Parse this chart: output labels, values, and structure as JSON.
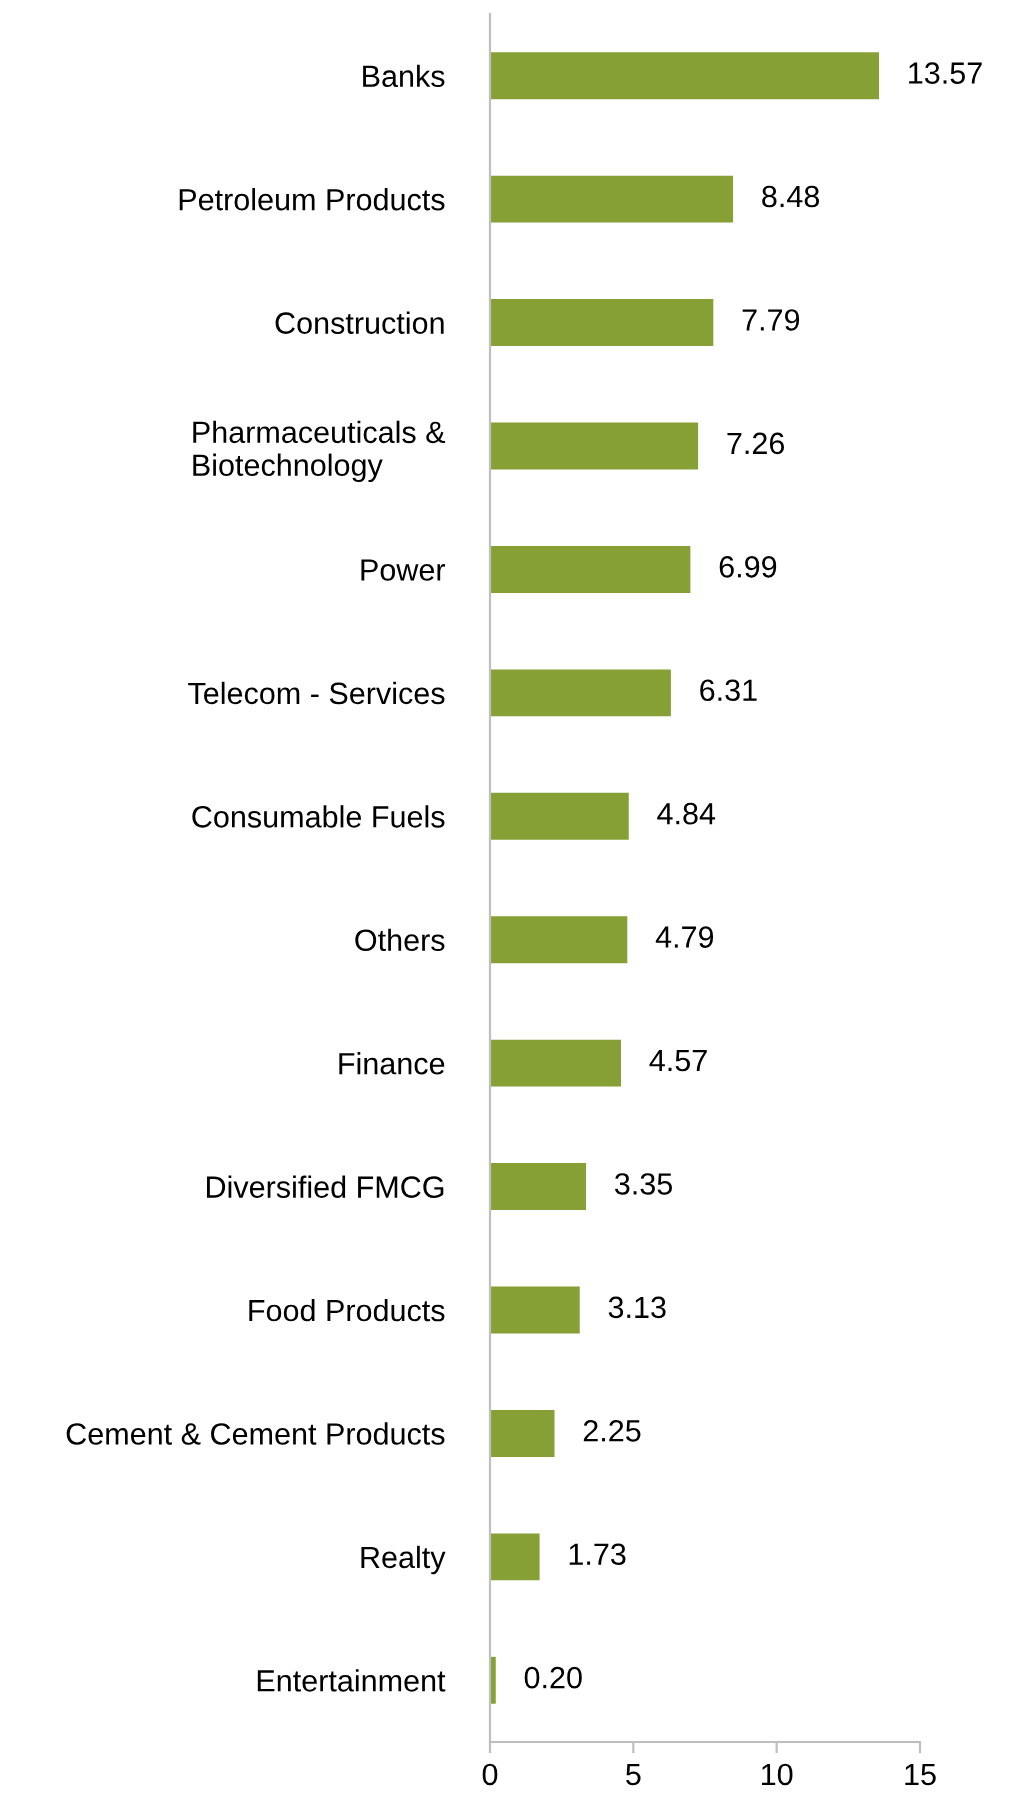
{
  "chart_data": {
    "type": "bar",
    "orientation": "horizontal",
    "categories": [
      "Banks",
      "Petroleum Products",
      "Construction",
      "Pharmaceuticals &\nBiotechnology",
      "Power",
      "Telecom - Services",
      "Consumable Fuels",
      "Others",
      "Finance",
      "Diversified FMCG",
      "Food Products",
      "Cement & Cement Products",
      "Realty",
      "Entertainment"
    ],
    "values": [
      13.57,
      8.48,
      7.79,
      7.26,
      6.99,
      6.31,
      4.84,
      4.79,
      4.57,
      3.35,
      3.13,
      2.25,
      1.73,
      0.2
    ],
    "value_labels": [
      "13.57",
      "8.48",
      "7.79",
      "7.26",
      "6.99",
      "6.31",
      "4.84",
      "4.79",
      "4.57",
      "3.35",
      "3.13",
      "2.25",
      "1.73",
      "0.20"
    ],
    "color": "#86a036",
    "xlim": [
      0,
      15
    ],
    "xticks": [
      0,
      5,
      10,
      15
    ],
    "grid": false
  }
}
